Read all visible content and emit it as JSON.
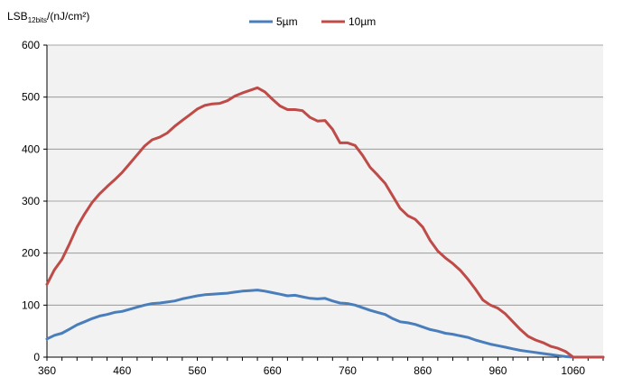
{
  "chart_data": {
    "type": "line",
    "ylabel_prefix": "LSB",
    "ylabel_sub": "12bits",
    "ylabel_suffix": "/(nJ/cm²)",
    "xlabel": "",
    "xlim": [
      360,
      1100
    ],
    "ylim": [
      0,
      600
    ],
    "x_ticks": [
      360,
      460,
      560,
      660,
      760,
      860,
      960,
      1060
    ],
    "y_ticks": [
      0,
      100,
      200,
      300,
      400,
      500,
      600
    ],
    "grid": "horizontal",
    "legend_position": "top",
    "series": [
      {
        "name": "5µm",
        "color": "#4a7ebb",
        "x": [
          360,
          370,
          380,
          390,
          400,
          410,
          420,
          430,
          440,
          450,
          460,
          470,
          480,
          490,
          500,
          510,
          520,
          530,
          540,
          550,
          560,
          570,
          580,
          590,
          600,
          610,
          620,
          630,
          640,
          650,
          660,
          670,
          680,
          690,
          700,
          710,
          720,
          730,
          740,
          750,
          760,
          770,
          780,
          790,
          800,
          810,
          820,
          830,
          840,
          850,
          860,
          870,
          880,
          890,
          900,
          910,
          920,
          930,
          940,
          950,
          960,
          970,
          980,
          990,
          1000,
          1010,
          1020,
          1030,
          1040,
          1050,
          1060,
          1070,
          1080,
          1090,
          1100
        ],
        "values": [
          35,
          42,
          46,
          54,
          62,
          68,
          74,
          79,
          82,
          86,
          88,
          92,
          96,
          100,
          103,
          104,
          106,
          108,
          112,
          115,
          118,
          120,
          121,
          122,
          123,
          125,
          127,
          128,
          129,
          127,
          124,
          121,
          118,
          119,
          116,
          113,
          112,
          113,
          108,
          104,
          103,
          100,
          95,
          90,
          86,
          82,
          74,
          68,
          66,
          63,
          58,
          53,
          50,
          46,
          44,
          41,
          38,
          33,
          29,
          25,
          22,
          19,
          16,
          13,
          11,
          9,
          7,
          5,
          3,
          1,
          0,
          0,
          0,
          0,
          0
        ]
      },
      {
        "name": "10µm",
        "color": "#be4b48",
        "x": [
          360,
          370,
          380,
          390,
          400,
          410,
          420,
          430,
          440,
          450,
          460,
          470,
          480,
          490,
          500,
          510,
          520,
          530,
          540,
          550,
          560,
          570,
          580,
          590,
          600,
          610,
          620,
          630,
          640,
          650,
          660,
          670,
          680,
          690,
          700,
          710,
          720,
          730,
          740,
          750,
          760,
          770,
          780,
          790,
          800,
          810,
          820,
          830,
          840,
          850,
          860,
          870,
          880,
          890,
          900,
          910,
          920,
          930,
          940,
          950,
          960,
          970,
          980,
          990,
          1000,
          1010,
          1020,
          1030,
          1040,
          1050,
          1060,
          1070,
          1080,
          1090,
          1100
        ],
        "values": [
          140,
          168,
          188,
          218,
          250,
          275,
          297,
          314,
          328,
          341,
          355,
          372,
          389,
          406,
          418,
          423,
          431,
          444,
          455,
          466,
          477,
          484,
          487,
          488,
          493,
          502,
          508,
          513,
          518,
          510,
          496,
          483,
          476,
          476,
          474,
          461,
          454,
          455,
          438,
          412,
          412,
          407,
          388,
          365,
          350,
          334,
          310,
          286,
          272,
          265,
          250,
          224,
          204,
          191,
          180,
          167,
          150,
          131,
          110,
          100,
          94,
          83,
          68,
          53,
          40,
          33,
          28,
          21,
          17,
          11,
          0,
          0,
          0,
          0,
          0
        ]
      }
    ]
  }
}
